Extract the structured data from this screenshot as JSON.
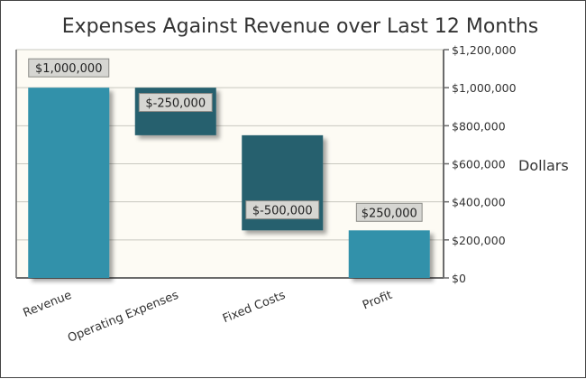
{
  "chart_data": {
    "type": "waterfall",
    "title": "Expenses Against Revenue over Last 12 Months",
    "xlabel": "",
    "ylabel": "Dollars",
    "ylim": [
      0,
      1200000
    ],
    "yticks": [
      0,
      200000,
      400000,
      600000,
      800000,
      1000000,
      1200000
    ],
    "ytick_labels": [
      "$0",
      "$200,000",
      "$400,000",
      "$600,000",
      "$800,000",
      "$1,000,000",
      "$1,200,000"
    ],
    "categories": [
      "Revenue",
      "Operating Expenses",
      "Fixed Costs",
      "Profit"
    ],
    "bars": [
      {
        "category": "Revenue",
        "start": 0,
        "end": 1000000,
        "value": 1000000,
        "label": "$1,000,000",
        "kind": "total"
      },
      {
        "category": "Operating Expenses",
        "start": 1000000,
        "end": 750000,
        "value": -250000,
        "label": "$-250,000",
        "kind": "decrease"
      },
      {
        "category": "Fixed Costs",
        "start": 750000,
        "end": 250000,
        "value": -500000,
        "label": "$-500,000",
        "kind": "decrease"
      },
      {
        "category": "Profit",
        "start": 0,
        "end": 250000,
        "value": 250000,
        "label": "$250,000",
        "kind": "total"
      }
    ],
    "grid": true,
    "colors": {
      "total": "#3391aa",
      "decrease": "#26606e",
      "plot_bg": "#fdfbf4",
      "grid": "#c8c8c0",
      "axis": "#6b6b6b",
      "label_bg": "#d6d6d2",
      "text": "#333333"
    }
  }
}
